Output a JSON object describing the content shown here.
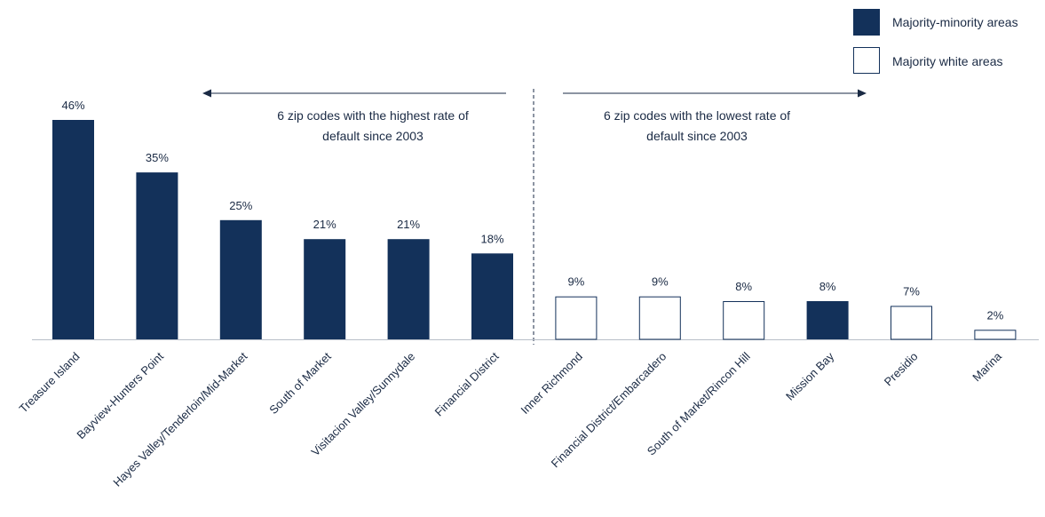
{
  "chart_data": {
    "type": "bar",
    "categories": [
      "Treasure Island",
      "Bayview-Hunters Point",
      "Hayes Valley/Tenderloin/Mid-Market",
      "South of Market",
      "Visitacion Valley/Sunnydale",
      "Financial District",
      "Inner Richmond",
      "Financial District/Embarcadero",
      "South of Market/Rincon Hill",
      "Mission Bay",
      "Presidio",
      "Marina"
    ],
    "values": [
      46,
      35,
      25,
      21,
      21,
      18,
      9,
      9,
      8,
      8,
      7,
      2
    ],
    "value_labels": [
      "46%",
      "35%",
      "25%",
      "21%",
      "21%",
      "18%",
      "9%",
      "9%",
      "8%",
      "8%",
      "7%",
      "2%"
    ],
    "area_type": [
      "majority-minority",
      "majority-minority",
      "majority-minority",
      "majority-minority",
      "majority-minority",
      "majority-minority",
      "majority-white",
      "majority-white",
      "majority-white",
      "majority-minority",
      "majority-white",
      "majority-white"
    ],
    "unit": "%",
    "ylim": [
      0,
      46
    ],
    "grid": false,
    "legend": {
      "placement": "top-right",
      "entries": [
        {
          "key": "majority-minority",
          "label": "Majority-minority areas"
        },
        {
          "key": "majority-white",
          "label": "Majority white areas"
        }
      ]
    },
    "annotations": {
      "highest": [
        "6 zip codes with the highest rate of",
        "default since 2003"
      ],
      "lowest": [
        "6 zip codes with the lowest rate of",
        "default since 2003"
      ]
    },
    "colors": {
      "majority-minority": "#13315a",
      "majority-white": "#ffffff",
      "outline": "#13315a",
      "text": "#1a2a44"
    }
  }
}
